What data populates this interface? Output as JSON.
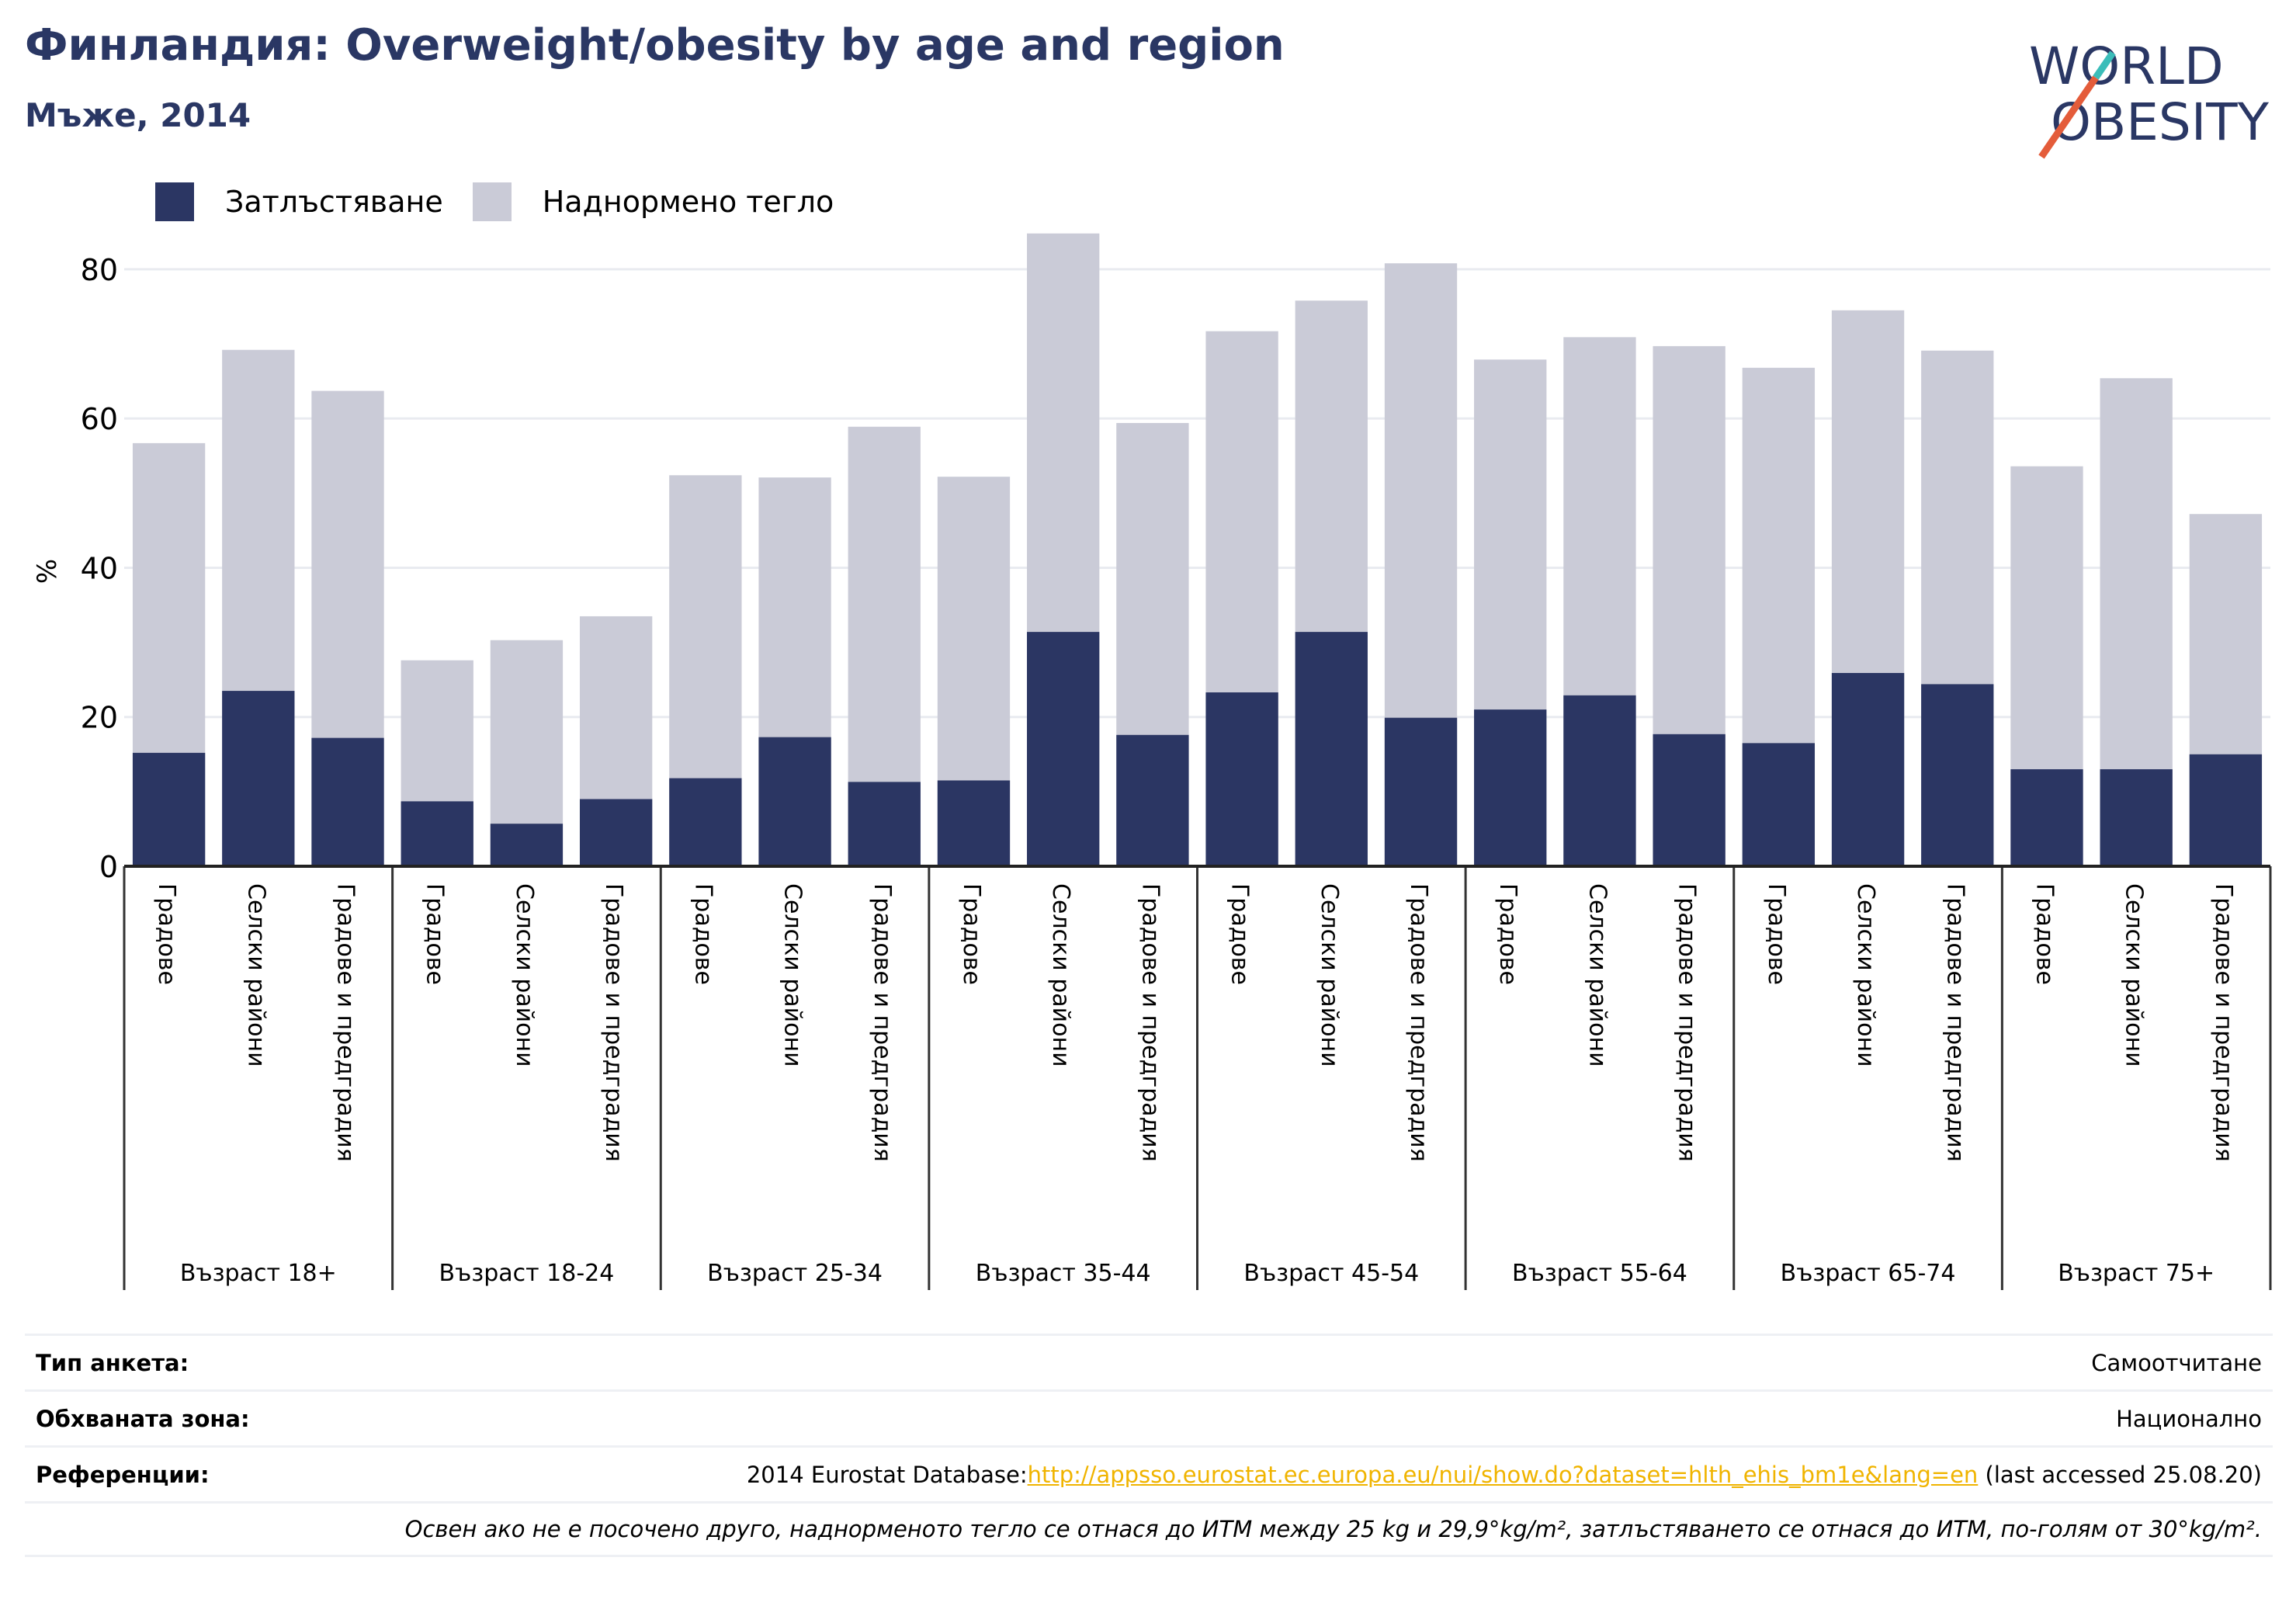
{
  "title": "Финландия: Overweight/obesity by age and region",
  "subtitle": "Мъже, 2014",
  "logo": {
    "line1": "WORLD",
    "line2": "OBESITY"
  },
  "colors": {
    "obesity": "#2b3663",
    "overweight": "#cacbd7",
    "title": "#2a3764",
    "link": "#f0b400",
    "logo_slash_red": "#e45c3a",
    "logo_slash_teal": "#3bbdb9"
  },
  "legend": [
    {
      "name": "Затлъстяване",
      "color": "#2b3663"
    },
    {
      "name": "Наднормено тегло",
      "color": "#cacbd7"
    }
  ],
  "chart_data": {
    "type": "bar",
    "stacked": false,
    "overlap": true,
    "ylabel": "%",
    "ylim": [
      0,
      88
    ],
    "yticks": [
      0,
      20,
      40,
      60,
      80
    ],
    "grid": true,
    "legend_position": "top-left",
    "groups": [
      {
        "label": "Възраст 18+",
        "categories": [
          "Градове",
          "Селски райони",
          "Градове и предградия"
        ],
        "obesity": [
          15.2,
          23.5,
          17.2
        ],
        "overweight": [
          56.7,
          69.2,
          63.7
        ]
      },
      {
        "label": "Възраст 18-24",
        "categories": [
          "Градове",
          "Селски райони",
          "Градове и предградия"
        ],
        "obesity": [
          8.7,
          5.7,
          9.0
        ],
        "overweight": [
          27.6,
          30.3,
          33.5
        ]
      },
      {
        "label": "Възраст 25-34",
        "categories": [
          "Градове",
          "Селски райони",
          "Градове и предградия"
        ],
        "obesity": [
          11.8,
          17.3,
          11.3
        ],
        "overweight": [
          52.4,
          52.1,
          58.9
        ]
      },
      {
        "label": "Възраст 35-44",
        "categories": [
          "Градове",
          "Селски райони",
          "Градове и предградия"
        ],
        "obesity": [
          11.5,
          31.4,
          17.6
        ],
        "overweight": [
          52.2,
          84.8,
          59.4
        ]
      },
      {
        "label": "Възраст 45-54",
        "categories": [
          "Градове",
          "Селски райони",
          "Градове и предградия"
        ],
        "obesity": [
          23.3,
          31.4,
          19.9
        ],
        "overweight": [
          71.7,
          75.8,
          80.8
        ]
      },
      {
        "label": "Възраст 55-64",
        "categories": [
          "Градове",
          "Селски райони",
          "Градове и предградия"
        ],
        "obesity": [
          21.0,
          22.9,
          17.7
        ],
        "overweight": [
          67.9,
          70.9,
          69.7
        ]
      },
      {
        "label": "Възраст 65-74",
        "categories": [
          "Градове",
          "Селски райони",
          "Градове и предградия"
        ],
        "obesity": [
          16.5,
          25.9,
          24.4
        ],
        "overweight": [
          66.8,
          74.5,
          69.1
        ]
      },
      {
        "label": "Възраст 75+",
        "categories": [
          "Градове",
          "Селски райони",
          "Градове и предградия"
        ],
        "obesity": [
          13.0,
          13.0,
          15.0
        ],
        "overweight": [
          53.6,
          65.4,
          47.2
        ]
      }
    ]
  },
  "info": {
    "survey_label": "Тип анкета:",
    "survey_value": "Самоотчитане",
    "coverage_label": "Обхваната зона:",
    "coverage_value": "Национално",
    "refs_label": "Референции:",
    "refs_prefix": "2014 Eurostat Database:",
    "refs_link": "http://appsso.eurostat.ec.europa.eu/nui/show.do?dataset=hlth_ehis_bm1e&lang=en",
    "refs_suffix": " (last accessed 25.08.20)",
    "note": "Освен ако не е посочено друго, наднорменото тегло се отнася до ИТМ между 25 kg и 29,9°kg/m², затлъстяването се отнася до ИТМ, по-голям от 30°kg/m²."
  }
}
